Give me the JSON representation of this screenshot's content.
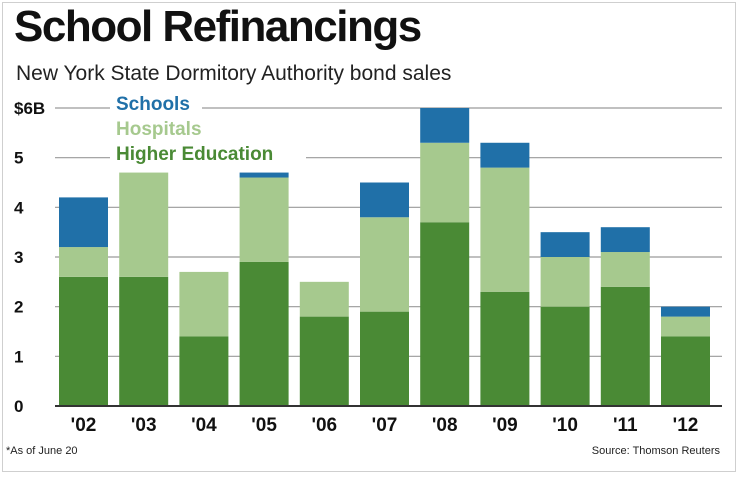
{
  "title": "School Refinancings",
  "subtitle": "New York State Dormitory Authority bond sales",
  "footnote": "*As of June 20",
  "source": "Source: Thomson Reuters",
  "colors": {
    "higher_education": "#4a8a35",
    "hospitals": "#a6c98e",
    "schools": "#2070a8",
    "grid": "#9a9a9a",
    "axis": "#333333"
  },
  "chart_data": {
    "type": "bar",
    "stacked": true,
    "title": "School Refinancings",
    "subtitle": "New York State Dormitory Authority bond sales",
    "categories": [
      "'02",
      "'03",
      "'04",
      "'05",
      "'06",
      "'07",
      "'08",
      "'09",
      "'10",
      "'11",
      "'12"
    ],
    "series": [
      {
        "name": "Higher Education",
        "values": [
          2.6,
          2.6,
          1.4,
          2.9,
          1.8,
          1.9,
          3.7,
          2.3,
          2.0,
          2.4,
          1.4
        ]
      },
      {
        "name": "Hospitals",
        "values": [
          0.6,
          2.1,
          1.3,
          1.7,
          0.7,
          1.9,
          1.6,
          2.5,
          1.0,
          0.7,
          0.4
        ]
      },
      {
        "name": "Schools",
        "values": [
          1.0,
          0.0,
          0.0,
          0.1,
          0.0,
          0.7,
          0.7,
          0.5,
          0.5,
          0.5,
          0.2
        ]
      }
    ],
    "legend_order": [
      "Schools",
      "Hospitals",
      "Higher Education"
    ],
    "ylim": [
      0,
      6
    ],
    "yticks": [
      {
        "value": 0,
        "label": "0"
      },
      {
        "value": 1,
        "label": "1"
      },
      {
        "value": 2,
        "label": "2"
      },
      {
        "value": 3,
        "label": "3"
      },
      {
        "value": 4,
        "label": "4"
      },
      {
        "value": 5,
        "label": "5"
      },
      {
        "value": 6,
        "label": "$6B"
      }
    ],
    "grid": true,
    "legend_position": "top-left",
    "xlabel": "",
    "ylabel": ""
  }
}
